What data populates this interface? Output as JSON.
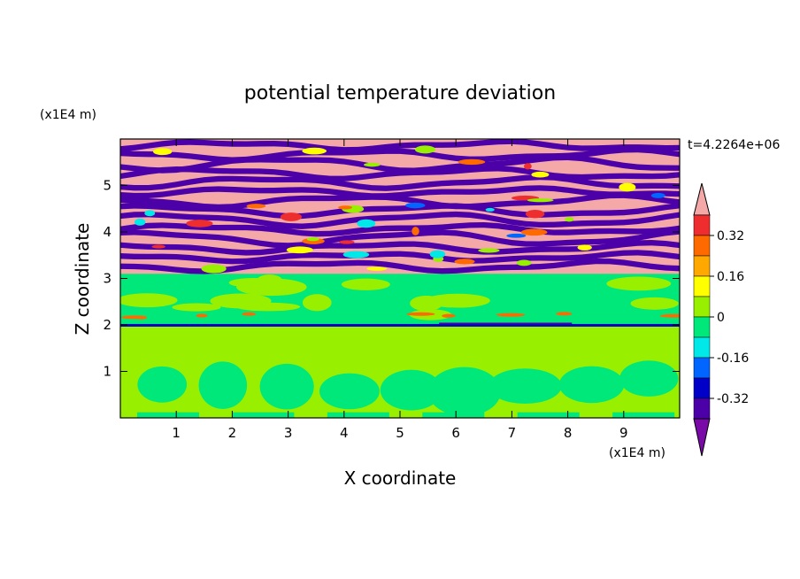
{
  "chart_data": {
    "type": "heatmap",
    "title": "potential temperature deviation",
    "xlabel": "X coordinate",
    "ylabel": "Z coordinate",
    "x_unit": "(x1E4 m)",
    "y_unit": "(x1E4 m)",
    "time_label": "t=4.2264e+06",
    "xlim": [
      0,
      10
    ],
    "ylim": [
      0,
      6
    ],
    "x_ticks": [
      "1",
      "2",
      "3",
      "4",
      "5",
      "6",
      "7",
      "8",
      "9"
    ],
    "y_ticks": [
      "1",
      "2",
      "3",
      "4",
      "5"
    ],
    "colorbar": {
      "tick_labels": [
        "0.32",
        "0.16",
        "0",
        "-0.16",
        "-0.32"
      ],
      "tick_values": [
        0.32,
        0.16,
        0,
        -0.16,
        -0.32
      ],
      "level_step": 0.08,
      "colors_top_to_bottom": [
        "#f4a8a8",
        "#ee2e2e",
        "#ff6a00",
        "#ffa800",
        "#ffff00",
        "#99ef00",
        "#00e87a",
        "#00e8e8",
        "#0066ff",
        "#0000c8",
        "#4b00a8",
        "#7a0aa8"
      ]
    },
    "field_description": {
      "layers": [
        {
          "z_range": [
            0,
            2.0
          ],
          "value_range": [
            -0.08,
            0.08
          ]
        },
        {
          "z_range": [
            2.0,
            3.1
          ],
          "value_range": [
            -0.04,
            0.08
          ]
        },
        {
          "z_range": [
            3.1,
            6.0
          ],
          "value_range": [
            -0.4,
            0.4
          ]
        }
      ]
    }
  }
}
